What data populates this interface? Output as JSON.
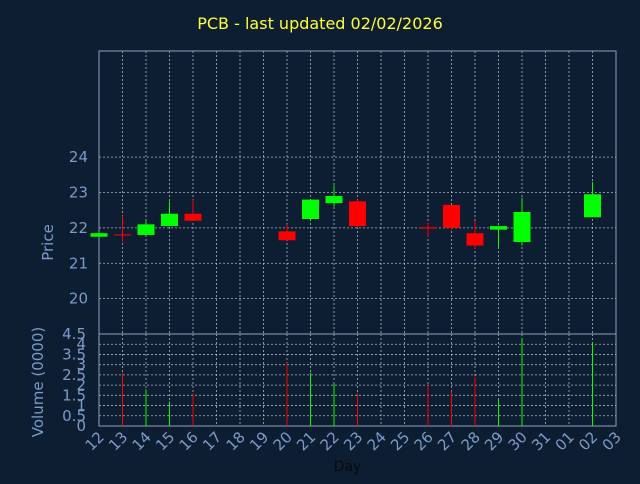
{
  "chart_data": {
    "type": "candlestick",
    "title": "PCB - last updated 02/02/2026",
    "xlabel": "Day",
    "x_ticks": [
      "12",
      "13",
      "14",
      "15",
      "16",
      "17",
      "18",
      "19",
      "20",
      "21",
      "22",
      "23",
      "24",
      "25",
      "26",
      "27",
      "28",
      "29",
      "30",
      "31",
      "01",
      "02",
      "03"
    ],
    "colors": {
      "background": "#0d1d32",
      "plot_border": "#8fa4b8",
      "grid": "#c8d0d8",
      "axis_text": "#7a9cc6",
      "title": "#ffff33",
      "up": "#00ff00",
      "down": "#ff0000",
      "neutral": "#ff0000"
    },
    "price_panel": {
      "ylabel": "Price",
      "ylim": [
        19.0,
        27.0
      ],
      "yticks": [
        20,
        21,
        22,
        23,
        24
      ],
      "grid": true,
      "candles": [
        {
          "day": "12",
          "open": 21.75,
          "close": 21.85,
          "high": 21.9,
          "low": 21.7
        },
        {
          "day": "13",
          "open": 21.8,
          "close": 21.8,
          "high": 22.35,
          "low": 21.6
        },
        {
          "day": "14",
          "open": 21.8,
          "close": 22.1,
          "high": 22.2,
          "low": 21.8
        },
        {
          "day": "15",
          "open": 22.05,
          "close": 22.4,
          "high": 22.75,
          "low": 22.05
        },
        {
          "day": "16",
          "open": 22.4,
          "close": 22.2,
          "high": 22.8,
          "low": 22.2
        },
        {
          "day": "20",
          "open": 21.9,
          "close": 21.65,
          "high": 22.1,
          "low": 21.65
        },
        {
          "day": "21",
          "open": 22.25,
          "close": 22.8,
          "high": 22.8,
          "low": 22.2
        },
        {
          "day": "22",
          "open": 22.7,
          "close": 22.9,
          "high": 23.2,
          "low": 22.6
        },
        {
          "day": "23",
          "open": 22.75,
          "close": 22.05,
          "high": 22.8,
          "low": 22.0
        },
        {
          "day": "26",
          "open": 22.0,
          "close": 22.0,
          "high": 22.15,
          "low": 21.75
        },
        {
          "day": "27",
          "open": 22.65,
          "close": 22.0,
          "high": 22.65,
          "low": 21.95
        },
        {
          "day": "28",
          "open": 21.85,
          "close": 21.5,
          "high": 22.2,
          "low": 21.4
        },
        {
          "day": "29",
          "open": 21.95,
          "close": 22.05,
          "high": 22.05,
          "low": 21.45
        },
        {
          "day": "30",
          "open": 21.6,
          "close": 22.45,
          "high": 22.85,
          "low": 21.5
        },
        {
          "day": "02",
          "open": 22.3,
          "close": 22.95,
          "high": 23.3,
          "low": 22.3
        }
      ]
    },
    "volume_panel": {
      "ylabel": "Volume (0000)",
      "ylim": [
        0,
        4.5
      ],
      "yticks": [
        0,
        0.5,
        1,
        1.5,
        2,
        2.5,
        3,
        3.5,
        4,
        4.5
      ],
      "ytick_labels": [
        "0",
        "0.5",
        "1",
        "1.5",
        "2",
        "2.5",
        "3",
        "3.5",
        "4",
        "4.5"
      ],
      "grid": true,
      "bars": [
        {
          "day": "13",
          "value": 2.6,
          "dir": "down"
        },
        {
          "day": "14",
          "value": 1.8,
          "dir": "up"
        },
        {
          "day": "15",
          "value": 1.2,
          "dir": "up"
        },
        {
          "day": "16",
          "value": 1.6,
          "dir": "down"
        },
        {
          "day": "20",
          "value": 3.1,
          "dir": "down"
        },
        {
          "day": "21",
          "value": 2.6,
          "dir": "up"
        },
        {
          "day": "22",
          "value": 2.1,
          "dir": "up"
        },
        {
          "day": "23",
          "value": 1.6,
          "dir": "down"
        },
        {
          "day": "26",
          "value": 2.0,
          "dir": "down"
        },
        {
          "day": "27",
          "value": 1.7,
          "dir": "down"
        },
        {
          "day": "28",
          "value": 2.4,
          "dir": "down"
        },
        {
          "day": "29",
          "value": 1.3,
          "dir": "up"
        },
        {
          "day": "30",
          "value": 4.3,
          "dir": "up"
        },
        {
          "day": "02",
          "value": 4.1,
          "dir": "up"
        }
      ]
    }
  }
}
